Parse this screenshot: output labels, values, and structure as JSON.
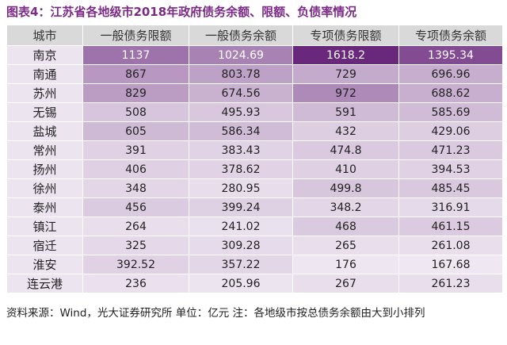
{
  "title": "图表4：江苏省各地级市2018年政府债务余额、限额、负债率情况",
  "table": {
    "header": [
      "城市",
      "一般债务限额",
      "一般债务余额",
      "专项债务限额",
      "专项债务余额"
    ],
    "rows": [
      [
        "南京",
        1137,
        1024.69,
        1618.2,
        1395.34
      ],
      [
        "南通",
        867,
        803.78,
        729,
        696.96
      ],
      [
        "苏州",
        829,
        674.56,
        972,
        688.62
      ],
      [
        "无锡",
        508,
        495.93,
        591,
        585.69
      ],
      [
        "盐城",
        605,
        586.34,
        432,
        429.06
      ],
      [
        "常州",
        391,
        383.43,
        474.8,
        471.23
      ],
      [
        "扬州",
        406,
        378.62,
        410,
        394.53
      ],
      [
        "徐州",
        348,
        280.95,
        499.8,
        485.45
      ],
      [
        "泰州",
        456,
        399.24,
        348.2,
        316.91
      ],
      [
        "镇江",
        264,
        241.02,
        468,
        461.15
      ],
      [
        "宿迁",
        325,
        309.28,
        265,
        261.08
      ],
      [
        "淮安",
        392.52,
        357.22,
        176,
        167.68
      ],
      [
        "连云港",
        236,
        205.96,
        267,
        261.23
      ]
    ]
  },
  "footer": "资料来源：Wind，光大证券研究所 单位：亿元 注：各地级市按总债务余额由大到小排列"
}
